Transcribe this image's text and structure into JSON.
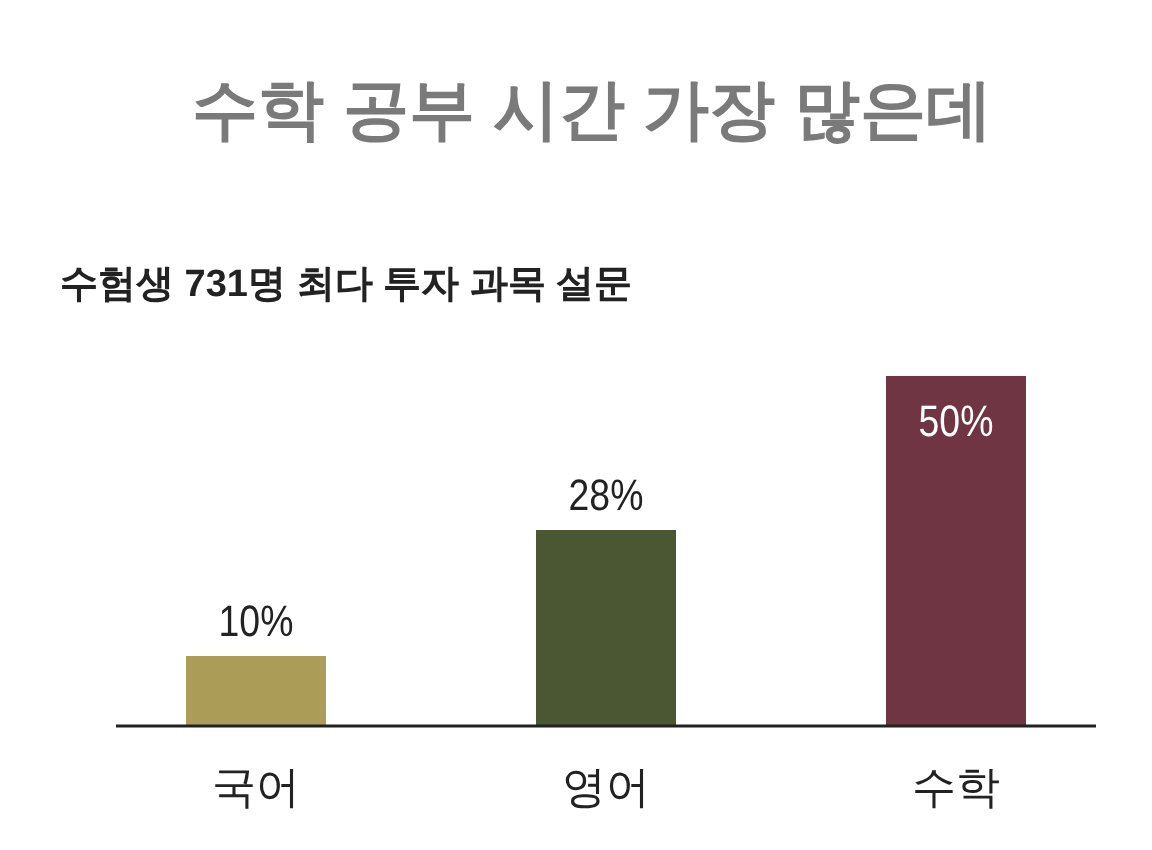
{
  "chart_data": {
    "type": "bar",
    "title": "수학 공부 시간 가장 많은데",
    "subtitle": "수험생 731명 최다 투자 과목 설문",
    "categories": [
      "국어",
      "영어",
      "수학"
    ],
    "values": [
      10,
      28,
      50
    ],
    "colors": [
      "#ab9d58",
      "#4b5632",
      "#6f3542"
    ],
    "value_labels": [
      "10%",
      "28%",
      "50%"
    ]
  }
}
